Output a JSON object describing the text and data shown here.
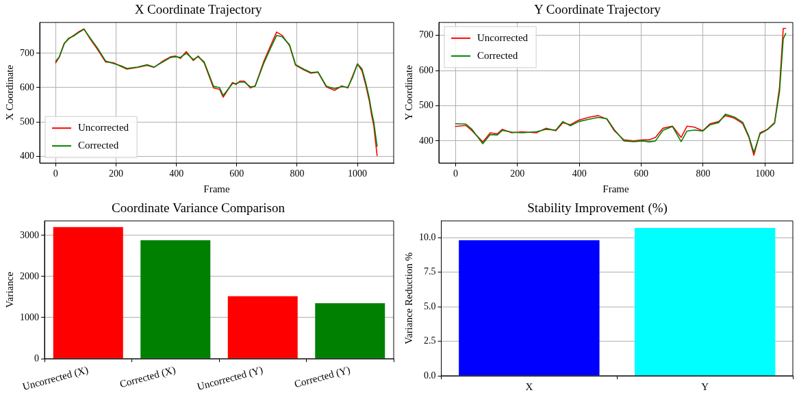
{
  "chart_data": [
    {
      "type": "line",
      "title": "X Coordinate Trajectory",
      "xlabel": "Frame",
      "ylabel": "X Coordinate",
      "xlim": [
        -53,
        1120
      ],
      "ylim": [
        380,
        790
      ],
      "xticks": [
        0,
        200,
        400,
        600,
        800,
        1000
      ],
      "yticks": [
        400,
        500,
        600,
        700
      ],
      "grid": true,
      "legend": "bottom left",
      "marker": "none",
      "line_style": "solid",
      "series": [
        {
          "name": "Uncorrected",
          "color": "#ff0000",
          "x": [
            0,
            12,
            28,
            43,
            59,
            75,
            94,
            114,
            138,
            165,
            193,
            216,
            236,
            271,
            303,
            326,
            358,
            381,
            397,
            413,
            433,
            456,
            472,
            492,
            523,
            543,
            555,
            586,
            598,
            610,
            625,
            645,
            661,
            689,
            712,
            732,
            751,
            775,
            795,
            822,
            846,
            869,
            897,
            924,
            948,
            968,
            983,
            1000,
            1015,
            1027,
            1039,
            1047,
            1054,
            1065
          ],
          "values": [
            672,
            689,
            729,
            742,
            752,
            762,
            771,
            742,
            712,
            675,
            672,
            662,
            654,
            659,
            665,
            659,
            679,
            690,
            692,
            685,
            705,
            679,
            692,
            672,
            599,
            595,
            572,
            615,
            609,
            619,
            619,
            599,
            605,
            675,
            722,
            762,
            752,
            722,
            665,
            652,
            642,
            645,
            602,
            592,
            605,
            599,
            632,
            669,
            649,
            609,
            562,
            519,
            489,
            402
          ]
        },
        {
          "name": "Corrected",
          "color": "#008000",
          "x": [
            0,
            12,
            28,
            43,
            59,
            75,
            94,
            114,
            138,
            165,
            193,
            216,
            236,
            271,
            303,
            326,
            358,
            381,
            397,
            413,
            433,
            456,
            472,
            492,
            523,
            543,
            555,
            586,
            598,
            610,
            625,
            645,
            661,
            689,
            712,
            732,
            751,
            775,
            795,
            822,
            846,
            869,
            897,
            924,
            948,
            968,
            983,
            1000,
            1015,
            1027,
            1039,
            1047,
            1054,
            1065
          ],
          "values": [
            677,
            690,
            727,
            744,
            750,
            760,
            770,
            745,
            716,
            678,
            670,
            664,
            656,
            660,
            667,
            660,
            676,
            688,
            690,
            688,
            700,
            682,
            690,
            675,
            604,
            600,
            577,
            612,
            612,
            616,
            616,
            602,
            604,
            670,
            715,
            752,
            748,
            725,
            667,
            654,
            644,
            646,
            604,
            597,
            603,
            601,
            628,
            669,
            655,
            616,
            570,
            529,
            500,
            429
          ]
        }
      ]
    },
    {
      "type": "line",
      "title": "Y Coordinate Trajectory",
      "xlabel": "Frame",
      "ylabel": "Y Coordinate",
      "xlim": [
        -54,
        1090
      ],
      "ylim": [
        337,
        737
      ],
      "xticks": [
        0,
        200,
        400,
        600,
        800,
        1000
      ],
      "yticks": [
        400,
        500,
        600,
        700
      ],
      "grid": true,
      "legend": "top left",
      "marker": "none",
      "line_style": "solid",
      "series": [
        {
          "name": "Uncorrected",
          "color": "#ff0000",
          "x": [
            0,
            33,
            53,
            88,
            112,
            135,
            151,
            182,
            214,
            261,
            292,
            324,
            347,
            371,
            398,
            434,
            461,
            489,
            513,
            544,
            575,
            607,
            626,
            646,
            670,
            701,
            729,
            748,
            772,
            799,
            823,
            850,
            872,
            901,
            928,
            948,
            964,
            984,
            1008,
            1031,
            1047,
            1059,
            1067
          ],
          "values": [
            441,
            444,
            429,
            397,
            423,
            420,
            433,
            423,
            426,
            423,
            436,
            429,
            452,
            446,
            459,
            468,
            472,
            462,
            429,
            403,
            400,
            403,
            403,
            410,
            436,
            442,
            410,
            442,
            439,
            429,
            449,
            455,
            472,
            465,
            449,
            410,
            359,
            423,
            433,
            452,
            553,
            720,
            720
          ]
        },
        {
          "name": "Corrected",
          "color": "#008000",
          "x": [
            0,
            33,
            53,
            88,
            112,
            135,
            151,
            182,
            214,
            261,
            292,
            324,
            347,
            371,
            398,
            434,
            461,
            489,
            513,
            544,
            575,
            607,
            626,
            646,
            670,
            701,
            729,
            748,
            772,
            799,
            823,
            850,
            872,
            901,
            928,
            948,
            964,
            984,
            1008,
            1031,
            1047,
            1059,
            1067
          ],
          "values": [
            449,
            448,
            433,
            392,
            418,
            417,
            430,
            425,
            423,
            426,
            433,
            431,
            455,
            443,
            455,
            462,
            467,
            463,
            432,
            400,
            398,
            400,
            397,
            400,
            430,
            441,
            398,
            428,
            431,
            428,
            446,
            452,
            476,
            468,
            453,
            413,
            367,
            420,
            432,
            450,
            540,
            690,
            706
          ]
        }
      ]
    },
    {
      "type": "bar",
      "title": "Coordinate Variance Comparison",
      "ylabel": "Variance",
      "categories": [
        "Uncorrected (X)",
        "Corrected (X)",
        "Uncorrected (Y)",
        "Corrected (Y)"
      ],
      "values": [
        3200,
        2880,
        1520,
        1350
      ],
      "colors": [
        "#ff0000",
        "#008000",
        "#ff0000",
        "#008000"
      ],
      "ylim": [
        0,
        3350
      ],
      "yticks": [
        0,
        1000,
        2000,
        3000
      ],
      "grid": "y"
    },
    {
      "type": "bar",
      "title": "Stability Improvement (%)",
      "ylabel": "Variance Reduction %",
      "categories": [
        "X",
        "Y"
      ],
      "values": [
        9.8,
        10.7
      ],
      "colors": [
        "#0000ff",
        "#00ffff"
      ],
      "ylim": [
        0,
        11.2
      ],
      "yticks": [
        {
          "value": 0,
          "label": "0.0"
        },
        {
          "value": 2.5,
          "label": "2.5"
        },
        {
          "value": 5,
          "label": "5.0"
        },
        {
          "value": 7.5,
          "label": "7.5"
        },
        {
          "value": 10,
          "label": "10.0"
        }
      ],
      "grid": "y"
    }
  ]
}
